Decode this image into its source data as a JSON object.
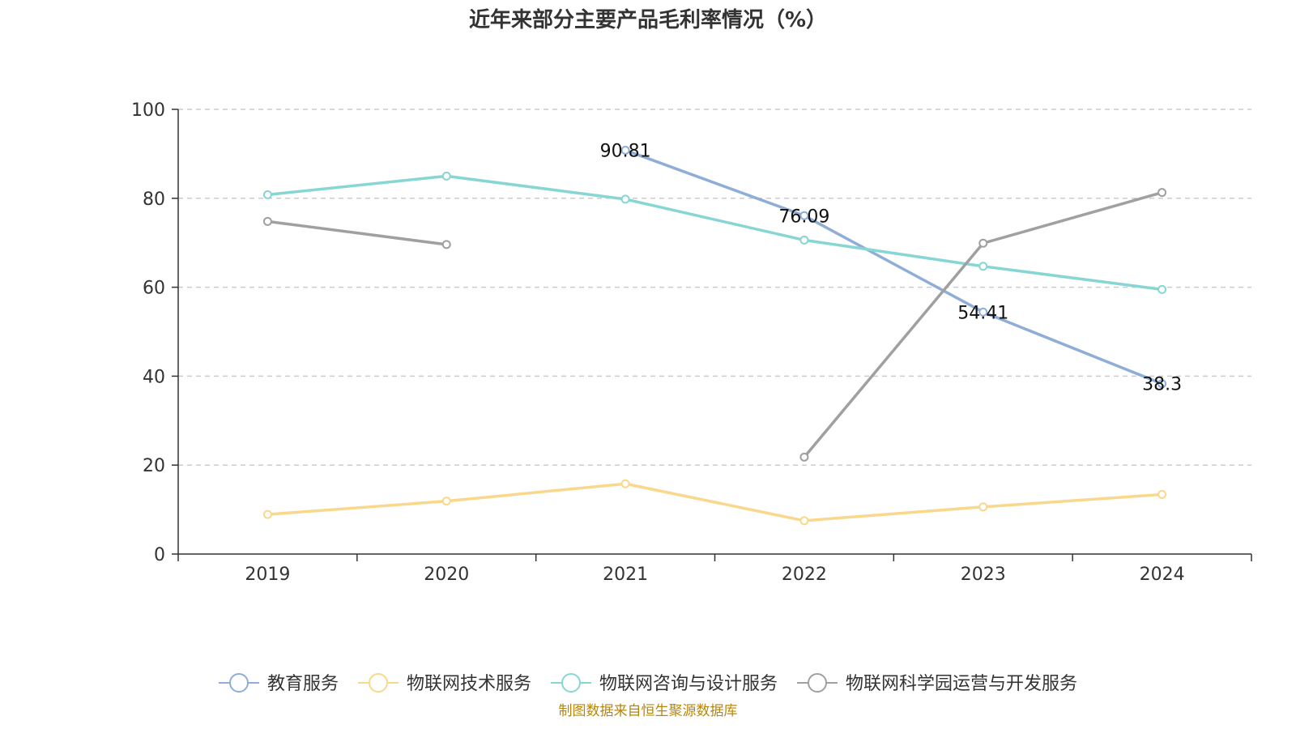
{
  "chart_data": {
    "type": "line",
    "title": "近年来部分主要产品毛利率情况（%）",
    "categories": [
      "2019",
      "2020",
      "2021",
      "2022",
      "2023",
      "2024"
    ],
    "ylim": [
      0,
      100
    ],
    "yticks": [
      0,
      20,
      40,
      60,
      80,
      100
    ],
    "ytick_labels": [
      "0",
      "20",
      "40",
      "60",
      "80",
      "100"
    ],
    "grid": true,
    "legend_position": "bottom",
    "series": [
      {
        "name": "教育服务",
        "color": "#8eaed8",
        "values": [
          null,
          null,
          90.81,
          76.09,
          54.41,
          38.3
        ],
        "labels": [
          null,
          null,
          "90.81",
          "76.09",
          "54.41",
          "38.3"
        ]
      },
      {
        "name": "物联网技术服务",
        "color": "#f9d88c",
        "values": [
          8.9,
          11.9,
          15.8,
          7.5,
          10.6,
          13.4
        ],
        "labels": [
          null,
          null,
          null,
          null,
          null,
          null
        ]
      },
      {
        "name": "物联网咨询与设计服务",
        "color": "#86d6d4",
        "values": [
          80.8,
          85.0,
          79.8,
          70.6,
          64.7,
          59.5
        ],
        "labels": [
          null,
          null,
          null,
          null,
          null,
          null
        ]
      },
      {
        "name": "物联网科学园运营与开发服务",
        "color": "#a0a0a0",
        "values": [
          74.8,
          69.6,
          null,
          21.8,
          69.9,
          81.3
        ],
        "labels": [
          null,
          null,
          null,
          null,
          null,
          null
        ]
      }
    ],
    "source": "制图数据来自恒生聚源数据库"
  }
}
